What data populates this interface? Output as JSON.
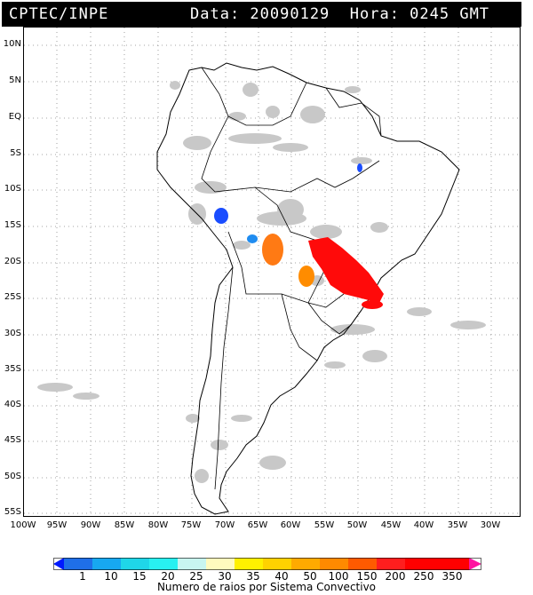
{
  "header": {
    "source": "CPTEC/INPE",
    "info": "Data: 20090129  Hora: 0245 GMT"
  },
  "lat_labels": [
    "10N",
    "5N",
    "EQ",
    "5S",
    "10S",
    "15S",
    "20S",
    "25S",
    "30S",
    "35S",
    "40S",
    "45S",
    "50S",
    "55S"
  ],
  "lon_labels": [
    "100W",
    "95W",
    "90W",
    "85W",
    "80W",
    "75W",
    "70W",
    "65W",
    "60W",
    "55W",
    "50W",
    "45W",
    "40W",
    "35W",
    "30W"
  ],
  "colorbar": {
    "labels": [
      "1",
      "10",
      "15",
      "20",
      "25",
      "30",
      "35",
      "40",
      "50",
      "100",
      "150",
      "200",
      "250",
      "350"
    ],
    "colors": [
      "#0019ff",
      "#1f6fe8",
      "#17a8f0",
      "#1fd6e8",
      "#28f0f0",
      "#c8f5f0",
      "#fffabe",
      "#fff000",
      "#ffd200",
      "#ffaa00",
      "#ff8a00",
      "#ff5a00",
      "#ff1e1e",
      "#ff0000",
      "#ff14a0"
    ],
    "title": "Numero de raios por Sistema Convectivo"
  },
  "map": {
    "cloud_color": "#c8c8c8",
    "systems": [
      {
        "color": "#1a4dff",
        "label": "1-10"
      },
      {
        "color": "#1f8cf0",
        "label": "10-15"
      },
      {
        "color": "#ff7a14",
        "label": "150-200"
      },
      {
        "color": "#ff8c00",
        "label": "100-150"
      },
      {
        "color": "#ff0a0a",
        "label": "250-350"
      }
    ]
  }
}
